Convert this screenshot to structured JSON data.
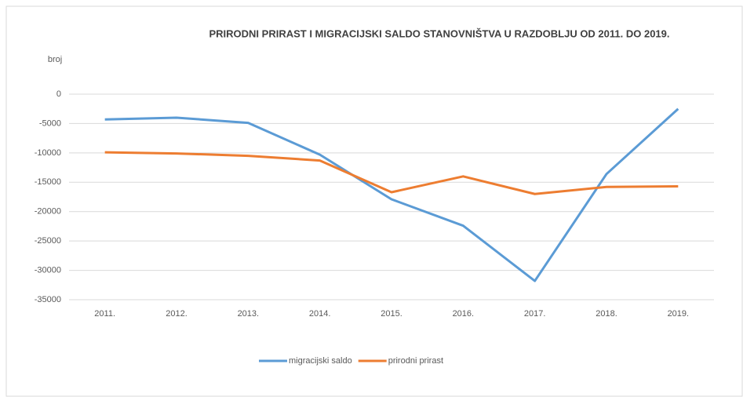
{
  "chart_data": {
    "type": "line",
    "title": "PRIRODNI PRIRAST I MIGRACIJSKI SALDO STANOVNIŠTVA U RAZDOBLJU OD 2011.  DO 2019.",
    "y_label": "broj",
    "categories": [
      "2011.",
      "2012.",
      "2013.",
      "2014.",
      "2015.",
      "2016.",
      "2017.",
      "2018.",
      "2019."
    ],
    "series": [
      {
        "name": "migracijski saldo",
        "color": "#5b9bd5",
        "values": [
          -4300,
          -4000,
          -4900,
          -10300,
          -17900,
          -22400,
          -31800,
          -13600,
          -2500
        ]
      },
      {
        "name": "prirodni prirast",
        "color": "#ed7d31",
        "values": [
          -9900,
          -10100,
          -10500,
          -11300,
          -16700,
          -14000,
          -17000,
          -15800,
          -15700
        ]
      }
    ],
    "ylim": [
      -35000,
      0
    ],
    "yticks": [
      0,
      -5000,
      -10000,
      -15000,
      -20000,
      -25000,
      -30000,
      -35000
    ],
    "grid": true,
    "legend": "bottom"
  }
}
